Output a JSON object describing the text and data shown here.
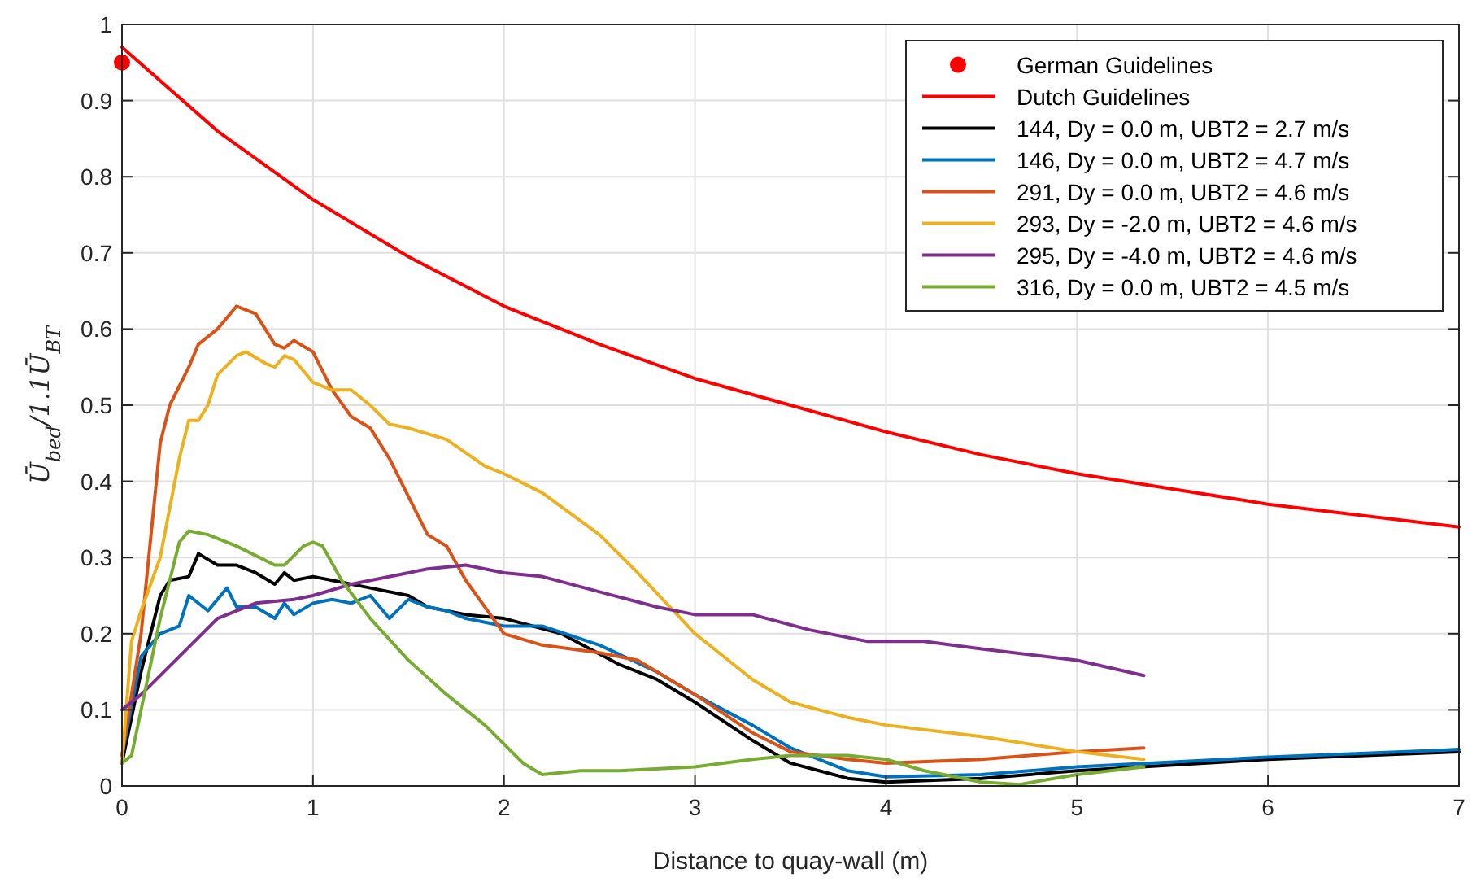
{
  "chart_data": {
    "type": "line",
    "xlabel": "Distance to quay-wall (m)",
    "ylabel": "Ū$_{bed}$/1.1Ū$_{BT}$",
    "xlim": [
      0,
      7
    ],
    "ylim": [
      0,
      1
    ],
    "xticks": [
      0,
      1,
      2,
      3,
      4,
      5,
      6,
      7
    ],
    "yticks": [
      0,
      0.1,
      0.2,
      0.3,
      0.4,
      0.5,
      0.6,
      0.7,
      0.8,
      0.9,
      1
    ],
    "grid": true,
    "legend": "top right",
    "series": [
      {
        "name": "German Guidelines",
        "type": "scatter",
        "marker": "circle",
        "color": "#ff0000",
        "x": [
          0
        ],
        "values": [
          0.95
        ]
      },
      {
        "name": "Dutch Guidelines",
        "color": "#ff0000",
        "x": [
          0,
          0.5,
          1,
          1.5,
          2,
          2.5,
          3,
          3.5,
          4,
          4.5,
          5,
          5.5,
          6,
          6.5,
          7
        ],
        "values": [
          0.97,
          0.86,
          0.77,
          0.695,
          0.63,
          0.58,
          0.535,
          0.5,
          0.465,
          0.435,
          0.41,
          0.39,
          0.37,
          0.355,
          0.34
        ]
      },
      {
        "name": "144, Dy = 0.0 m, UBT2 = 2.7 m/s",
        "color": "#000000",
        "x": [
          0,
          0.1,
          0.2,
          0.25,
          0.35,
          0.4,
          0.5,
          0.6,
          0.7,
          0.8,
          0.85,
          0.9,
          1,
          1.1,
          1.3,
          1.5,
          1.6,
          1.8,
          2,
          2.3,
          2.6,
          2.8,
          3,
          3.3,
          3.5,
          3.8,
          4,
          4.5,
          5,
          6,
          7
        ],
        "values": [
          0.03,
          0.15,
          0.25,
          0.27,
          0.275,
          0.305,
          0.29,
          0.29,
          0.28,
          0.265,
          0.28,
          0.27,
          0.275,
          0.27,
          0.26,
          0.25,
          0.235,
          0.225,
          0.22,
          0.2,
          0.16,
          0.14,
          0.11,
          0.06,
          0.03,
          0.01,
          0.005,
          0.01,
          0.02,
          0.035,
          0.045
        ]
      },
      {
        "name": "146, Dy = 0.0 m, UBT2 = 4.7 m/s",
        "color": "#0072bd",
        "x": [
          0,
          0.1,
          0.2,
          0.3,
          0.35,
          0.45,
          0.55,
          0.6,
          0.7,
          0.8,
          0.85,
          0.9,
          1,
          1.1,
          1.2,
          1.3,
          1.4,
          1.5,
          1.6,
          1.7,
          1.8,
          2,
          2.2,
          2.5,
          2.8,
          3,
          3.3,
          3.5,
          3.8,
          4,
          4.5,
          5,
          6,
          7
        ],
        "values": [
          0.04,
          0.17,
          0.2,
          0.21,
          0.25,
          0.23,
          0.26,
          0.235,
          0.235,
          0.22,
          0.24,
          0.225,
          0.24,
          0.245,
          0.24,
          0.25,
          0.22,
          0.245,
          0.235,
          0.23,
          0.22,
          0.21,
          0.21,
          0.185,
          0.15,
          0.12,
          0.08,
          0.05,
          0.02,
          0.012,
          0.015,
          0.025,
          0.038,
          0.048
        ]
      },
      {
        "name": "291, Dy = 0.0 m, UBT2 = 4.6 m/s",
        "color": "#d95319",
        "x": [
          0,
          0.1,
          0.2,
          0.25,
          0.35,
          0.4,
          0.5,
          0.6,
          0.7,
          0.8,
          0.85,
          0.9,
          1,
          1.1,
          1.2,
          1.3,
          1.4,
          1.5,
          1.6,
          1.7,
          1.8,
          2,
          2.2,
          2.5,
          2.7,
          3,
          3.3,
          3.5,
          3.8,
          4,
          4.5,
          5,
          5.35
        ],
        "values": [
          0.04,
          0.2,
          0.45,
          0.5,
          0.55,
          0.58,
          0.6,
          0.63,
          0.62,
          0.58,
          0.575,
          0.585,
          0.57,
          0.52,
          0.485,
          0.47,
          0.43,
          0.38,
          0.33,
          0.315,
          0.27,
          0.2,
          0.185,
          0.175,
          0.165,
          0.12,
          0.07,
          0.045,
          0.035,
          0.03,
          0.035,
          0.045,
          0.05
        ]
      },
      {
        "name": "293, Dy = -2.0 m, UBT2 = 4.6 m/s",
        "color": "#edb120",
        "x": [
          0,
          0.05,
          0.1,
          0.2,
          0.3,
          0.35,
          0.4,
          0.45,
          0.5,
          0.6,
          0.65,
          0.75,
          0.8,
          0.85,
          0.9,
          1,
          1.1,
          1.2,
          1.3,
          1.4,
          1.5,
          1.7,
          1.9,
          2,
          2.2,
          2.5,
          2.7,
          3,
          3.3,
          3.5,
          3.8,
          4,
          4.5,
          5,
          5.35
        ],
        "values": [
          0.03,
          0.19,
          0.23,
          0.3,
          0.43,
          0.48,
          0.48,
          0.5,
          0.54,
          0.565,
          0.57,
          0.555,
          0.55,
          0.565,
          0.56,
          0.53,
          0.52,
          0.52,
          0.5,
          0.475,
          0.47,
          0.455,
          0.42,
          0.41,
          0.385,
          0.33,
          0.28,
          0.2,
          0.14,
          0.11,
          0.09,
          0.08,
          0.065,
          0.045,
          0.035
        ]
      },
      {
        "name": "295, Dy = -4.0 m, UBT2 = 4.6 m/s",
        "color": "#7e2f8e",
        "x": [
          0,
          0.1,
          0.3,
          0.5,
          0.7,
          0.9,
          1,
          1.2,
          1.5,
          1.6,
          1.8,
          2,
          2.2,
          2.5,
          2.8,
          3,
          3.3,
          3.6,
          3.9,
          4.2,
          4.5,
          5,
          5.35
        ],
        "values": [
          0.1,
          0.12,
          0.17,
          0.22,
          0.24,
          0.245,
          0.25,
          0.265,
          0.28,
          0.285,
          0.29,
          0.28,
          0.275,
          0.255,
          0.235,
          0.225,
          0.225,
          0.205,
          0.19,
          0.19,
          0.18,
          0.165,
          0.145
        ]
      },
      {
        "name": "316, Dy = 0.0 m, UBT2 = 4.5 m/s",
        "color": "#77ac30",
        "x": [
          0,
          0.05,
          0.1,
          0.2,
          0.3,
          0.35,
          0.45,
          0.6,
          0.8,
          0.85,
          0.95,
          1,
          1.05,
          1.15,
          1.3,
          1.5,
          1.7,
          1.9,
          2.1,
          2.2,
          2.4,
          2.6,
          3,
          3.3,
          3.5,
          3.8,
          4,
          4.2,
          4.5,
          4.7,
          5,
          5.35
        ],
        "values": [
          0.03,
          0.04,
          0.1,
          0.22,
          0.32,
          0.335,
          0.33,
          0.315,
          0.29,
          0.29,
          0.315,
          0.32,
          0.315,
          0.27,
          0.22,
          0.165,
          0.12,
          0.08,
          0.03,
          0.015,
          0.02,
          0.02,
          0.025,
          0.035,
          0.04,
          0.04,
          0.035,
          0.02,
          0.005,
          0.002,
          0.015,
          0.025
        ]
      }
    ]
  }
}
